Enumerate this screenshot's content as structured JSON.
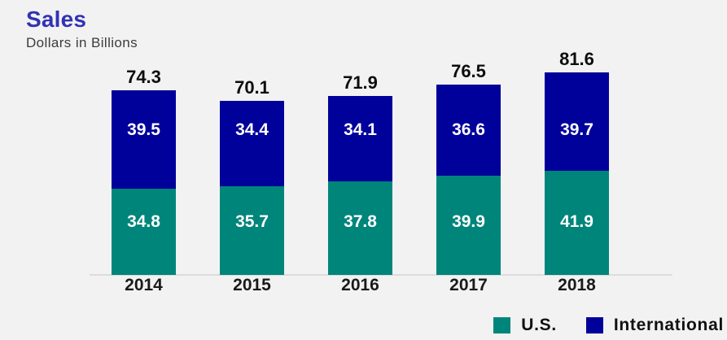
{
  "header": {
    "title": "Sales",
    "subtitle": "Dollars in Billions"
  },
  "colors": {
    "us": "#00857b",
    "international": "#00009a",
    "title": "#3232b4",
    "background": "#f2f2f2",
    "baseline": "#dcdcdc"
  },
  "legend": {
    "items": [
      {
        "label": "U.S.",
        "color_key": "us"
      },
      {
        "label": "International",
        "color_key": "international"
      }
    ]
  },
  "chart_data": {
    "type": "bar",
    "stacked": true,
    "title": "Sales",
    "subtitle": "Dollars in Billions",
    "categories": [
      "2014",
      "2015",
      "2016",
      "2017",
      "2018"
    ],
    "series": [
      {
        "name": "U.S.",
        "color_key": "us",
        "values": [
          34.8,
          35.7,
          37.8,
          39.9,
          41.9
        ]
      },
      {
        "name": "International",
        "color_key": "international",
        "values": [
          39.5,
          34.4,
          34.1,
          36.6,
          39.7
        ]
      }
    ],
    "totals": [
      74.3,
      70.1,
      71.9,
      76.5,
      81.6
    ],
    "ylabel": "Dollars in Billions",
    "ylim": [
      0,
      85
    ],
    "grid": false,
    "legend_position": "bottom-right"
  }
}
